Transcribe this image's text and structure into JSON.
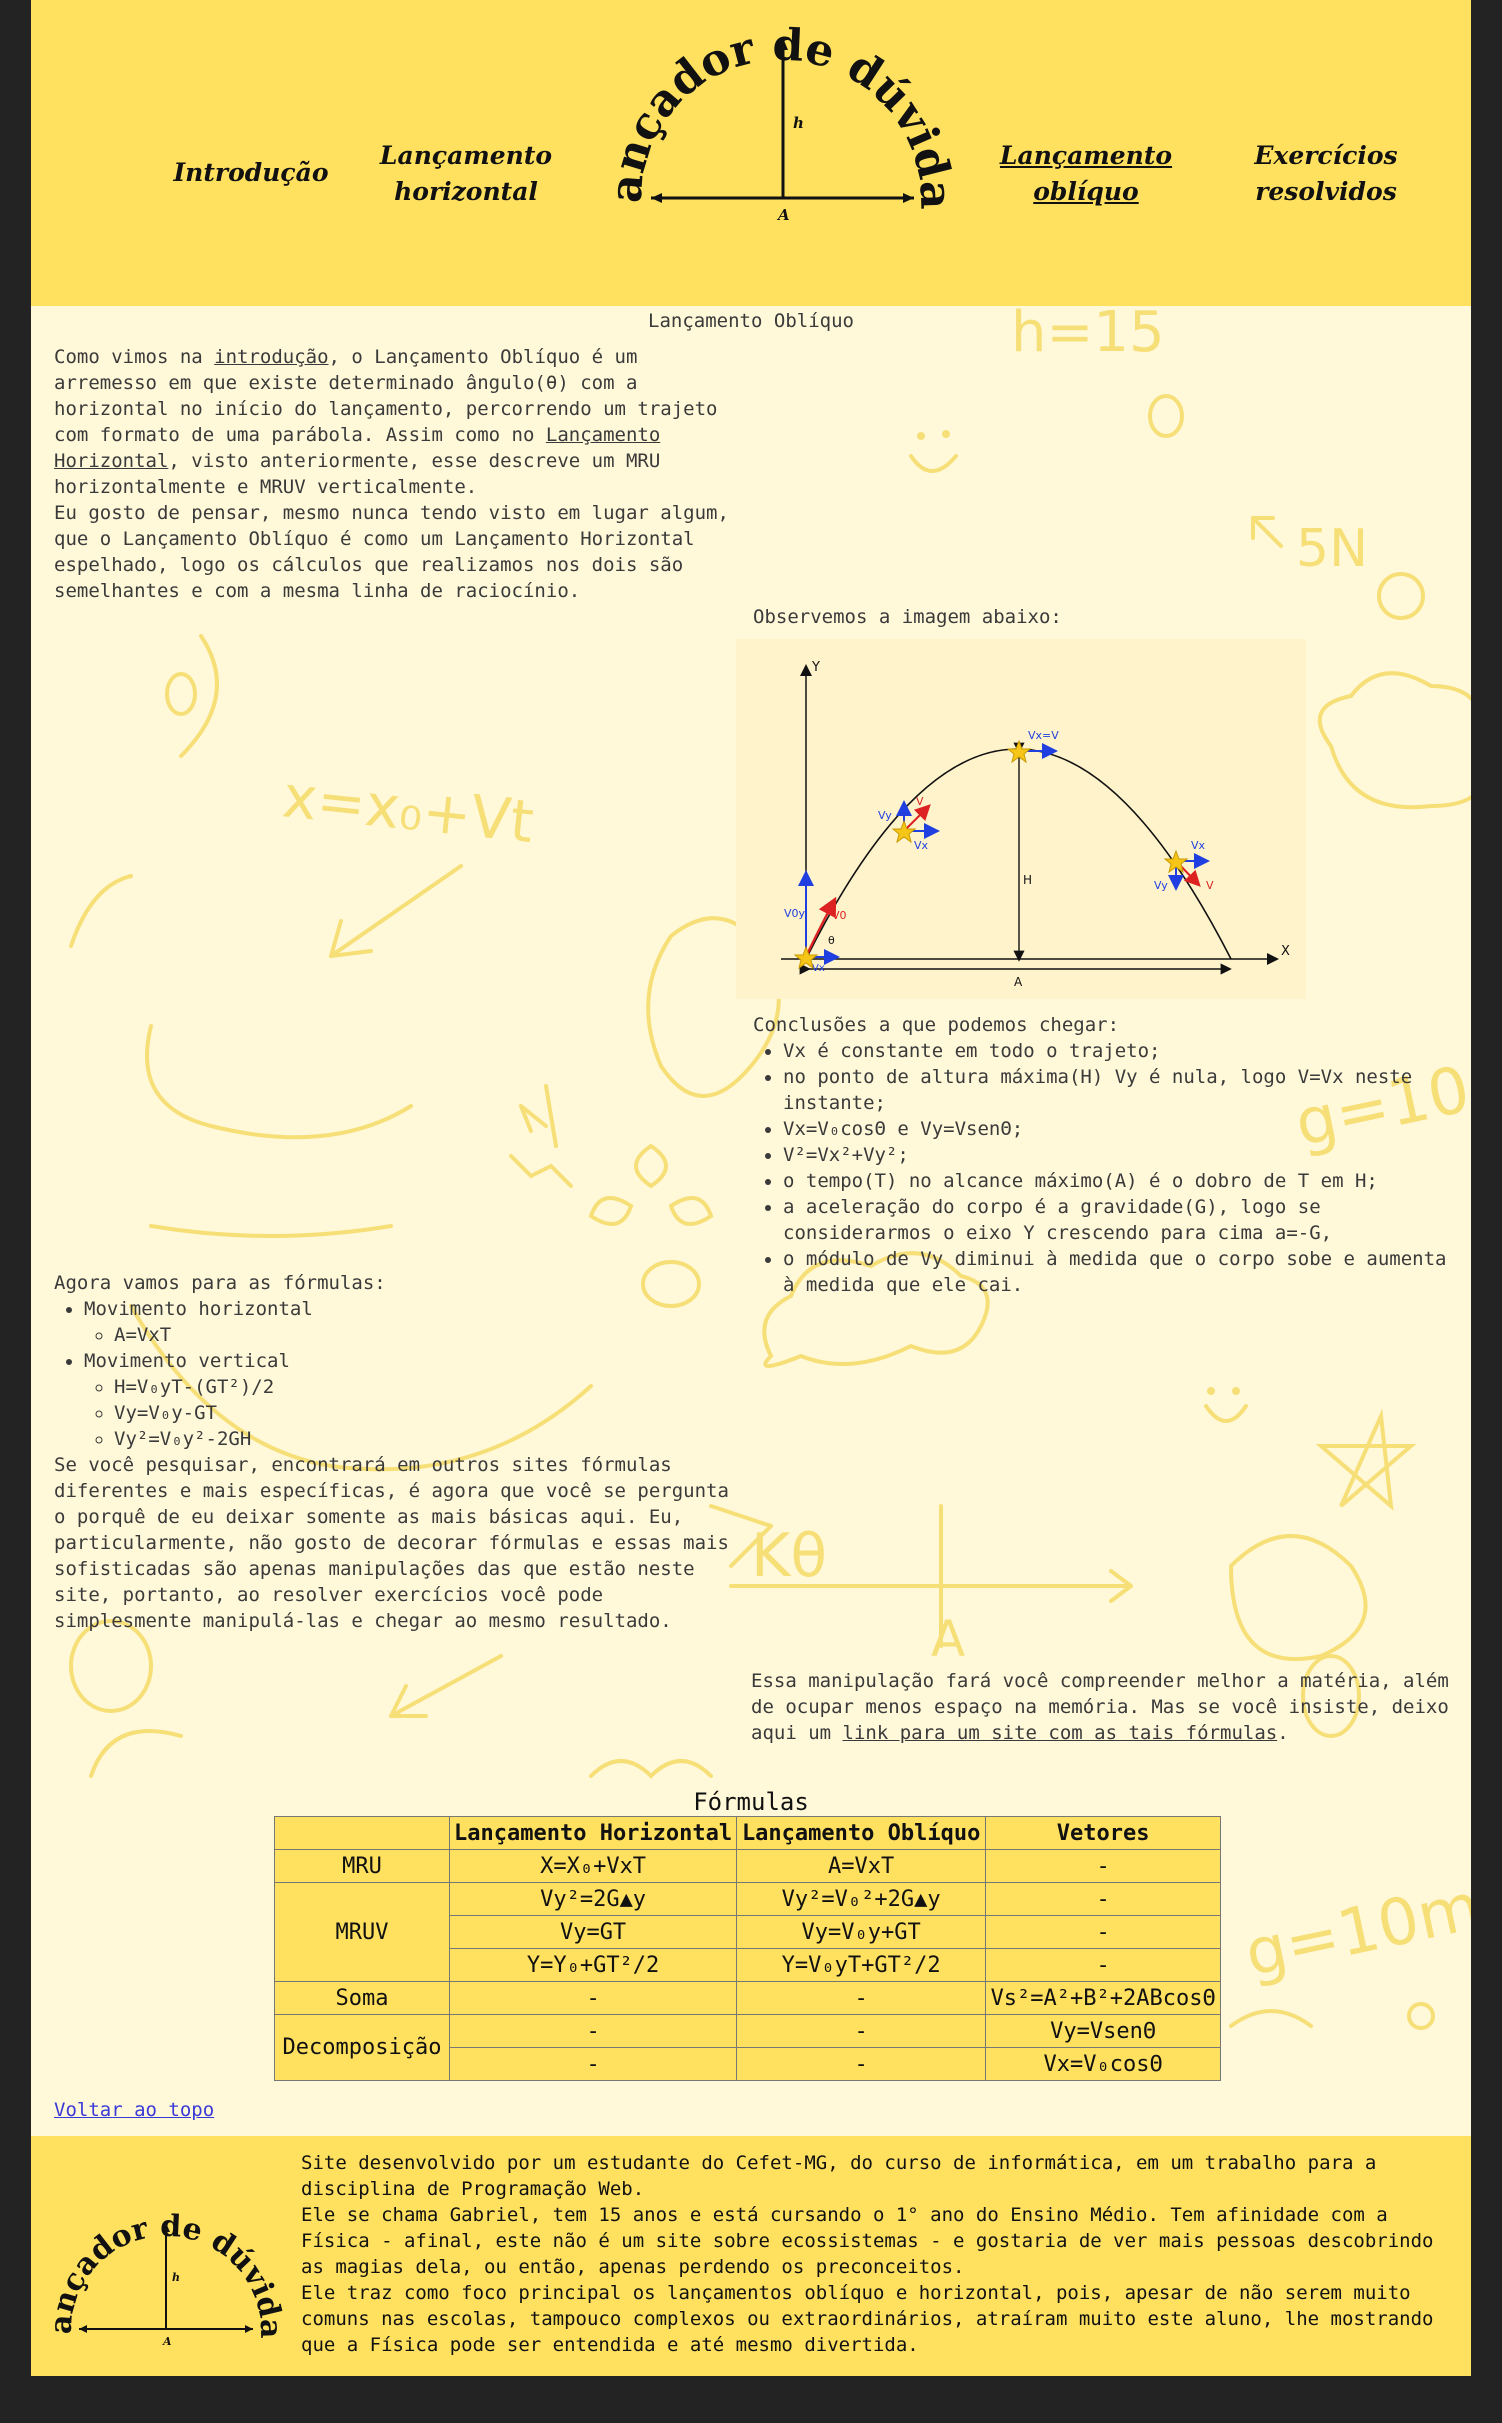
{
  "header": {
    "logo_title": "Lançador de dúvidas",
    "logo_h": "h",
    "logo_a": "A",
    "nav": [
      {
        "label_1": "Introdução",
        "label_2": ""
      },
      {
        "label_1": "Lançamento",
        "label_2": "horizontal"
      },
      {
        "label_1": "Lançamento",
        "label_2": "oblíquo"
      },
      {
        "label_1": "Exercícios",
        "label_2": "resolvidos"
      }
    ]
  },
  "main": {
    "title": "Lançamento Oblíquo",
    "intro": {
      "t1": "Como vimos na ",
      "link1": "introdução",
      "t2": ", o Lançamento Oblíquo é um arremesso em que existe determinado ângulo(θ) com a horizontal no início do lançamento, percorrendo um trajeto com formato de uma parábola. Assim como no ",
      "link2": "Lançamento Horizontal",
      "t3": ", visto anteriormente, esse descreve um MRU horizontalmente e MRUV verticalmente."
    },
    "mirror_paragraph": "Eu gosto de pensar, mesmo nunca tendo visto em lugar algum, que o Lançamento Oblíquo é como um Lançamento Horizontal espelhado, logo os cálculos que realizamos nos dois são semelhantes e com a mesma linha de raciocínio.",
    "observe": "Observemos a imagem abaixo:",
    "figure_labels": {
      "y": "Y",
      "x": "X",
      "h": "H",
      "a": "A",
      "theta": "θ",
      "v0y": "V0y",
      "v0": "V0",
      "vx": "Vx",
      "vy": "Vy",
      "v": "V",
      "vx_eq_v": "Vx=V"
    },
    "conclusions_title": "Conclusões a que podemos chegar:",
    "conclusions": [
      "Vx é constante em todo o trajeto;",
      "no ponto de altura máxima(H) Vy é nula, logo V=Vx neste instante;",
      "Vx=V₀cosΘ e Vy=VsenΘ;",
      "V²=Vx²+Vy²;",
      "o tempo(T) no alcance máximo(A) é o dobro de T em H;",
      "a aceleração do corpo é a gravidade(G), logo se considerarmos o eixo Y crescendo para cima a=-G,",
      "o módulo de Vy diminui à medida que o corpo sobe e aumenta à medida que ele cai."
    ],
    "formulas_intro": "Agora vamos para as fórmulas:",
    "horizontal_label": "Movimento horizontal",
    "horizontal_formulas": [
      "A=VxT"
    ],
    "vertical_label": "Movimento vertical",
    "vertical_formulas": [
      "H=V₀yT-(GT²)/2",
      "Vy=V₀y-GT",
      "Vy²=V₀y²-2GH"
    ],
    "research_paragraph": "Se você pesquisar, encontrará em outros sites fórmulas diferentes e mais específicas, é agora que você se pergunta o porquê de eu deixar somente as mais básicas aqui. Eu, particularmente, não gosto de decorar fórmulas e essas mais sofisticadas são apenas manipulações das que estão neste site, portanto, ao resolver exercícios você pode simplesmente manipulá-las e chegar ao mesmo resultado.",
    "manip": {
      "t1": "Essa manipulação fará você compreender melhor a matéria, além de ocupar menos espaço na memória. Mas se você insiste, deixo aqui um ",
      "link": "link para um site com as tais fórmulas",
      "t2": "."
    },
    "table_title": "Fórmulas",
    "table_headers": [
      "",
      "Lançamento Horizontal",
      "Lançamento Oblíquo",
      "Vetores"
    ],
    "rows": {
      "mru": [
        "MRU",
        "X=X₀+VxT",
        "A=VxT",
        "-"
      ],
      "mruv_label": "MRUV",
      "mruv": [
        [
          "Vy²=2G▲y",
          "Vy²=V₀²+2G▲y",
          "-"
        ],
        [
          "Vy=GT",
          "Vy=V₀y+GT",
          "-"
        ],
        [
          "Y=Y₀+GT²/2",
          "Y=V₀yT+GT²/2",
          "-"
        ]
      ],
      "soma": [
        "Soma",
        "-",
        "-",
        "Vs²=A²+B²+2ABcosΘ"
      ],
      "decomp_label": "Decomposição",
      "decomp": [
        [
          "-",
          "-",
          "Vy=VsenΘ"
        ],
        [
          "-",
          "-",
          "Vx=V₀cosΘ"
        ]
      ]
    },
    "back_to_top": "Voltar ao topo"
  },
  "footer": {
    "p1": " Site desenvolvido por um estudante do Cefet-MG, do curso de informática, em um trabalho para a disciplina de Programação Web.",
    "p2": " Ele se chama Gabriel, tem 15 anos e está cursando o 1° ano do Ensino Médio. Tem afinidade com a Física - afinal, este não é um site sobre ecossistemas - e gostaria de ver mais pessoas descobrindo as magias dela, ou então, apenas perdendo os preconceitos.",
    "p3": " Ele traz como foco principal os lançamentos oblíquo e horizontal, pois, apesar de não serem muito comuns nas escolas, tampouco complexos ou extraordinários, atraíram muito este aluno, lhe mostrando que a Física pode ser entendida e até mesmo divertida."
  },
  "colors": {
    "accent": "#ffe15f",
    "background": "#fff8d9",
    "frame": "#232323",
    "link": "#3a3ad8"
  }
}
